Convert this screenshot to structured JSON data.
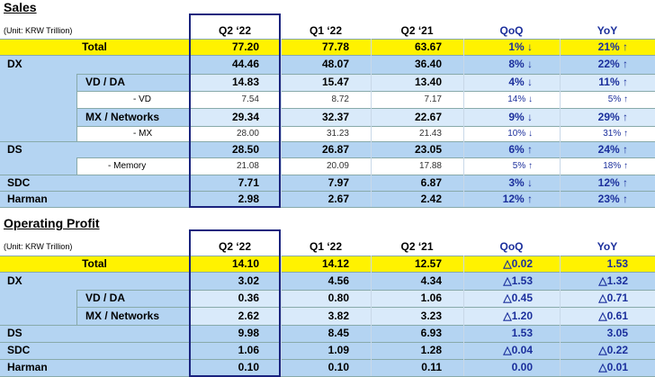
{
  "sales": {
    "title": "Sales",
    "unit": "(Unit: KRW Trillion)",
    "headers": [
      "Q2 ‘22",
      "Q1 ‘22",
      "Q2 ‘21",
      "QoQ",
      "YoY"
    ],
    "rows": [
      {
        "label": "Total",
        "values": [
          "77.20",
          "77.78",
          "63.67",
          "1% ↓",
          "21% ↑"
        ]
      },
      {
        "label": "DX",
        "values": [
          "44.46",
          "48.07",
          "36.40",
          "8% ↓",
          "22% ↑"
        ]
      },
      {
        "label": "VD / DA",
        "values": [
          "14.83",
          "15.47",
          "13.40",
          "4% ↓",
          "11% ↑"
        ]
      },
      {
        "label": "- VD",
        "values": [
          "7.54",
          "8.72",
          "7.17",
          "14% ↓",
          "5% ↑"
        ]
      },
      {
        "label": "MX / Networks",
        "values": [
          "29.34",
          "32.37",
          "22.67",
          "9% ↓",
          "29% ↑"
        ]
      },
      {
        "label": "- MX",
        "values": [
          "28.00",
          "31.23",
          "21.43",
          "10% ↓",
          "31% ↑"
        ]
      },
      {
        "label": "DS",
        "values": [
          "28.50",
          "26.87",
          "23.05",
          "6% ↑",
          "24% ↑"
        ]
      },
      {
        "label": "- Memory",
        "values": [
          "21.08",
          "20.09",
          "17.88",
          "5% ↑",
          "18% ↑"
        ]
      },
      {
        "label": "SDC",
        "values": [
          "7.71",
          "7.97",
          "6.87",
          "3% ↓",
          "12% ↑"
        ]
      },
      {
        "label": "Harman",
        "values": [
          "2.98",
          "2.67",
          "2.42",
          "12% ↑",
          "23% ↑"
        ]
      }
    ]
  },
  "operating_profit": {
    "title": "Operating Profit",
    "unit": "(Unit: KRW Trillion)",
    "headers": [
      "Q2 ‘22",
      "Q1 ‘22",
      "Q2 ‘21",
      "QoQ",
      "YoY"
    ],
    "rows": [
      {
        "label": "Total",
        "values": [
          "14.10",
          "14.12",
          "12.57",
          "△0.02",
          "1.53"
        ]
      },
      {
        "label": "DX",
        "values": [
          "3.02",
          "4.56",
          "4.34",
          "△1.53",
          "△1.32"
        ]
      },
      {
        "label": "VD / DA",
        "values": [
          "0.36",
          "0.80",
          "1.06",
          "△0.45",
          "△0.71"
        ]
      },
      {
        "label": "MX / Networks",
        "values": [
          "2.62",
          "3.82",
          "3.23",
          "△1.20",
          "△0.61"
        ]
      },
      {
        "label": "DS",
        "values": [
          "9.98",
          "8.45",
          "6.93",
          "1.53",
          "3.05"
        ]
      },
      {
        "label": "SDC",
        "values": [
          "1.06",
          "1.09",
          "1.28",
          "△0.04",
          "△0.22"
        ]
      },
      {
        "label": "Harman",
        "values": [
          "0.10",
          "0.10",
          "0.11",
          "0.00",
          "△0.01"
        ]
      }
    ]
  }
}
